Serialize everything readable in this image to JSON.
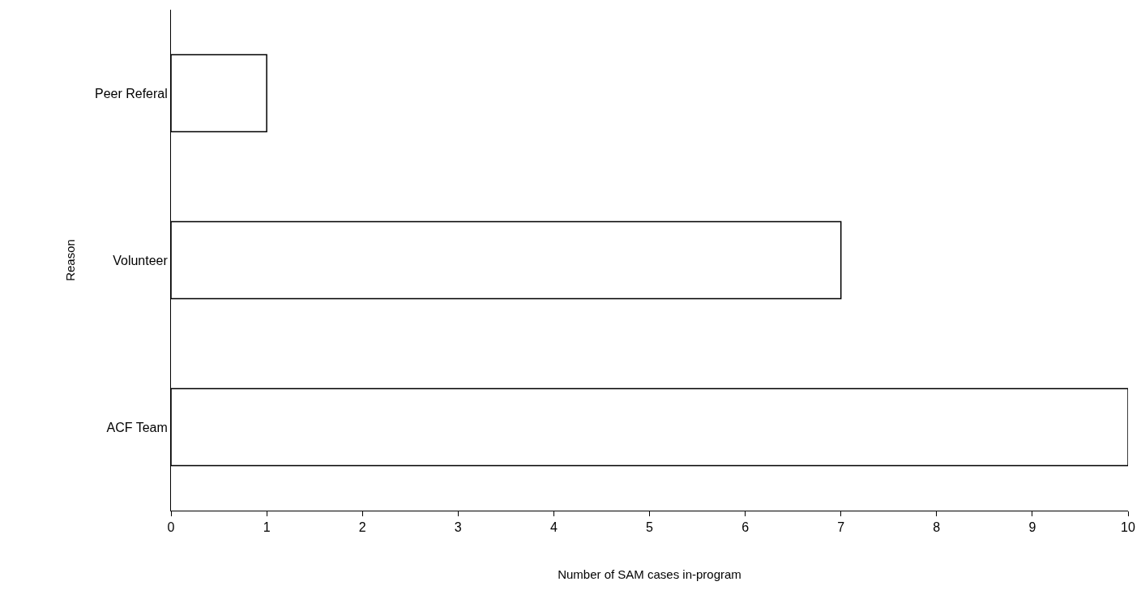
{
  "chart_data": {
    "type": "bar",
    "orientation": "horizontal",
    "xlabel": "Number of SAM cases in-program",
    "ylabel": "Reason",
    "categories": [
      "Peer Referal",
      "Volunteer",
      "ACF Team"
    ],
    "values": [
      1,
      7,
      10
    ],
    "color": "#ffffff",
    "xlim": [
      0,
      10
    ],
    "xticks": [
      0,
      1,
      2,
      3,
      4,
      5,
      6,
      7,
      8,
      9,
      10
    ]
  }
}
